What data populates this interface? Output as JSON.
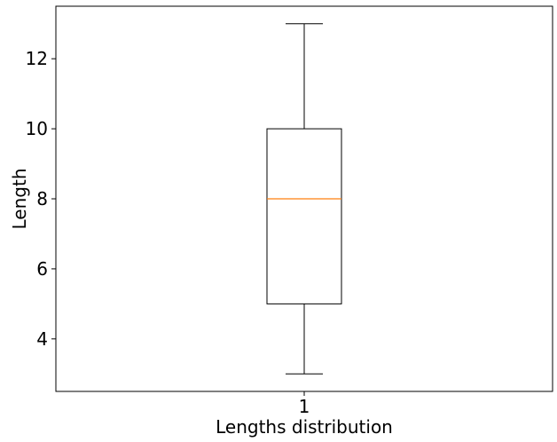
{
  "chart_data": {
    "type": "box",
    "title": "",
    "xlabel": "Lengths distribution",
    "ylabel": "Length",
    "categories": [
      "1"
    ],
    "ylim": [
      2.5,
      13.5
    ],
    "yticks": [
      4,
      6,
      8,
      10,
      12
    ],
    "grid": false,
    "boxes": [
      {
        "category": "1",
        "whisker_low": 3,
        "q1": 5,
        "median": 8,
        "q3": 10,
        "whisker_high": 13
      }
    ],
    "colors": {
      "box": "#000000",
      "median": "#ff7f0e"
    }
  }
}
